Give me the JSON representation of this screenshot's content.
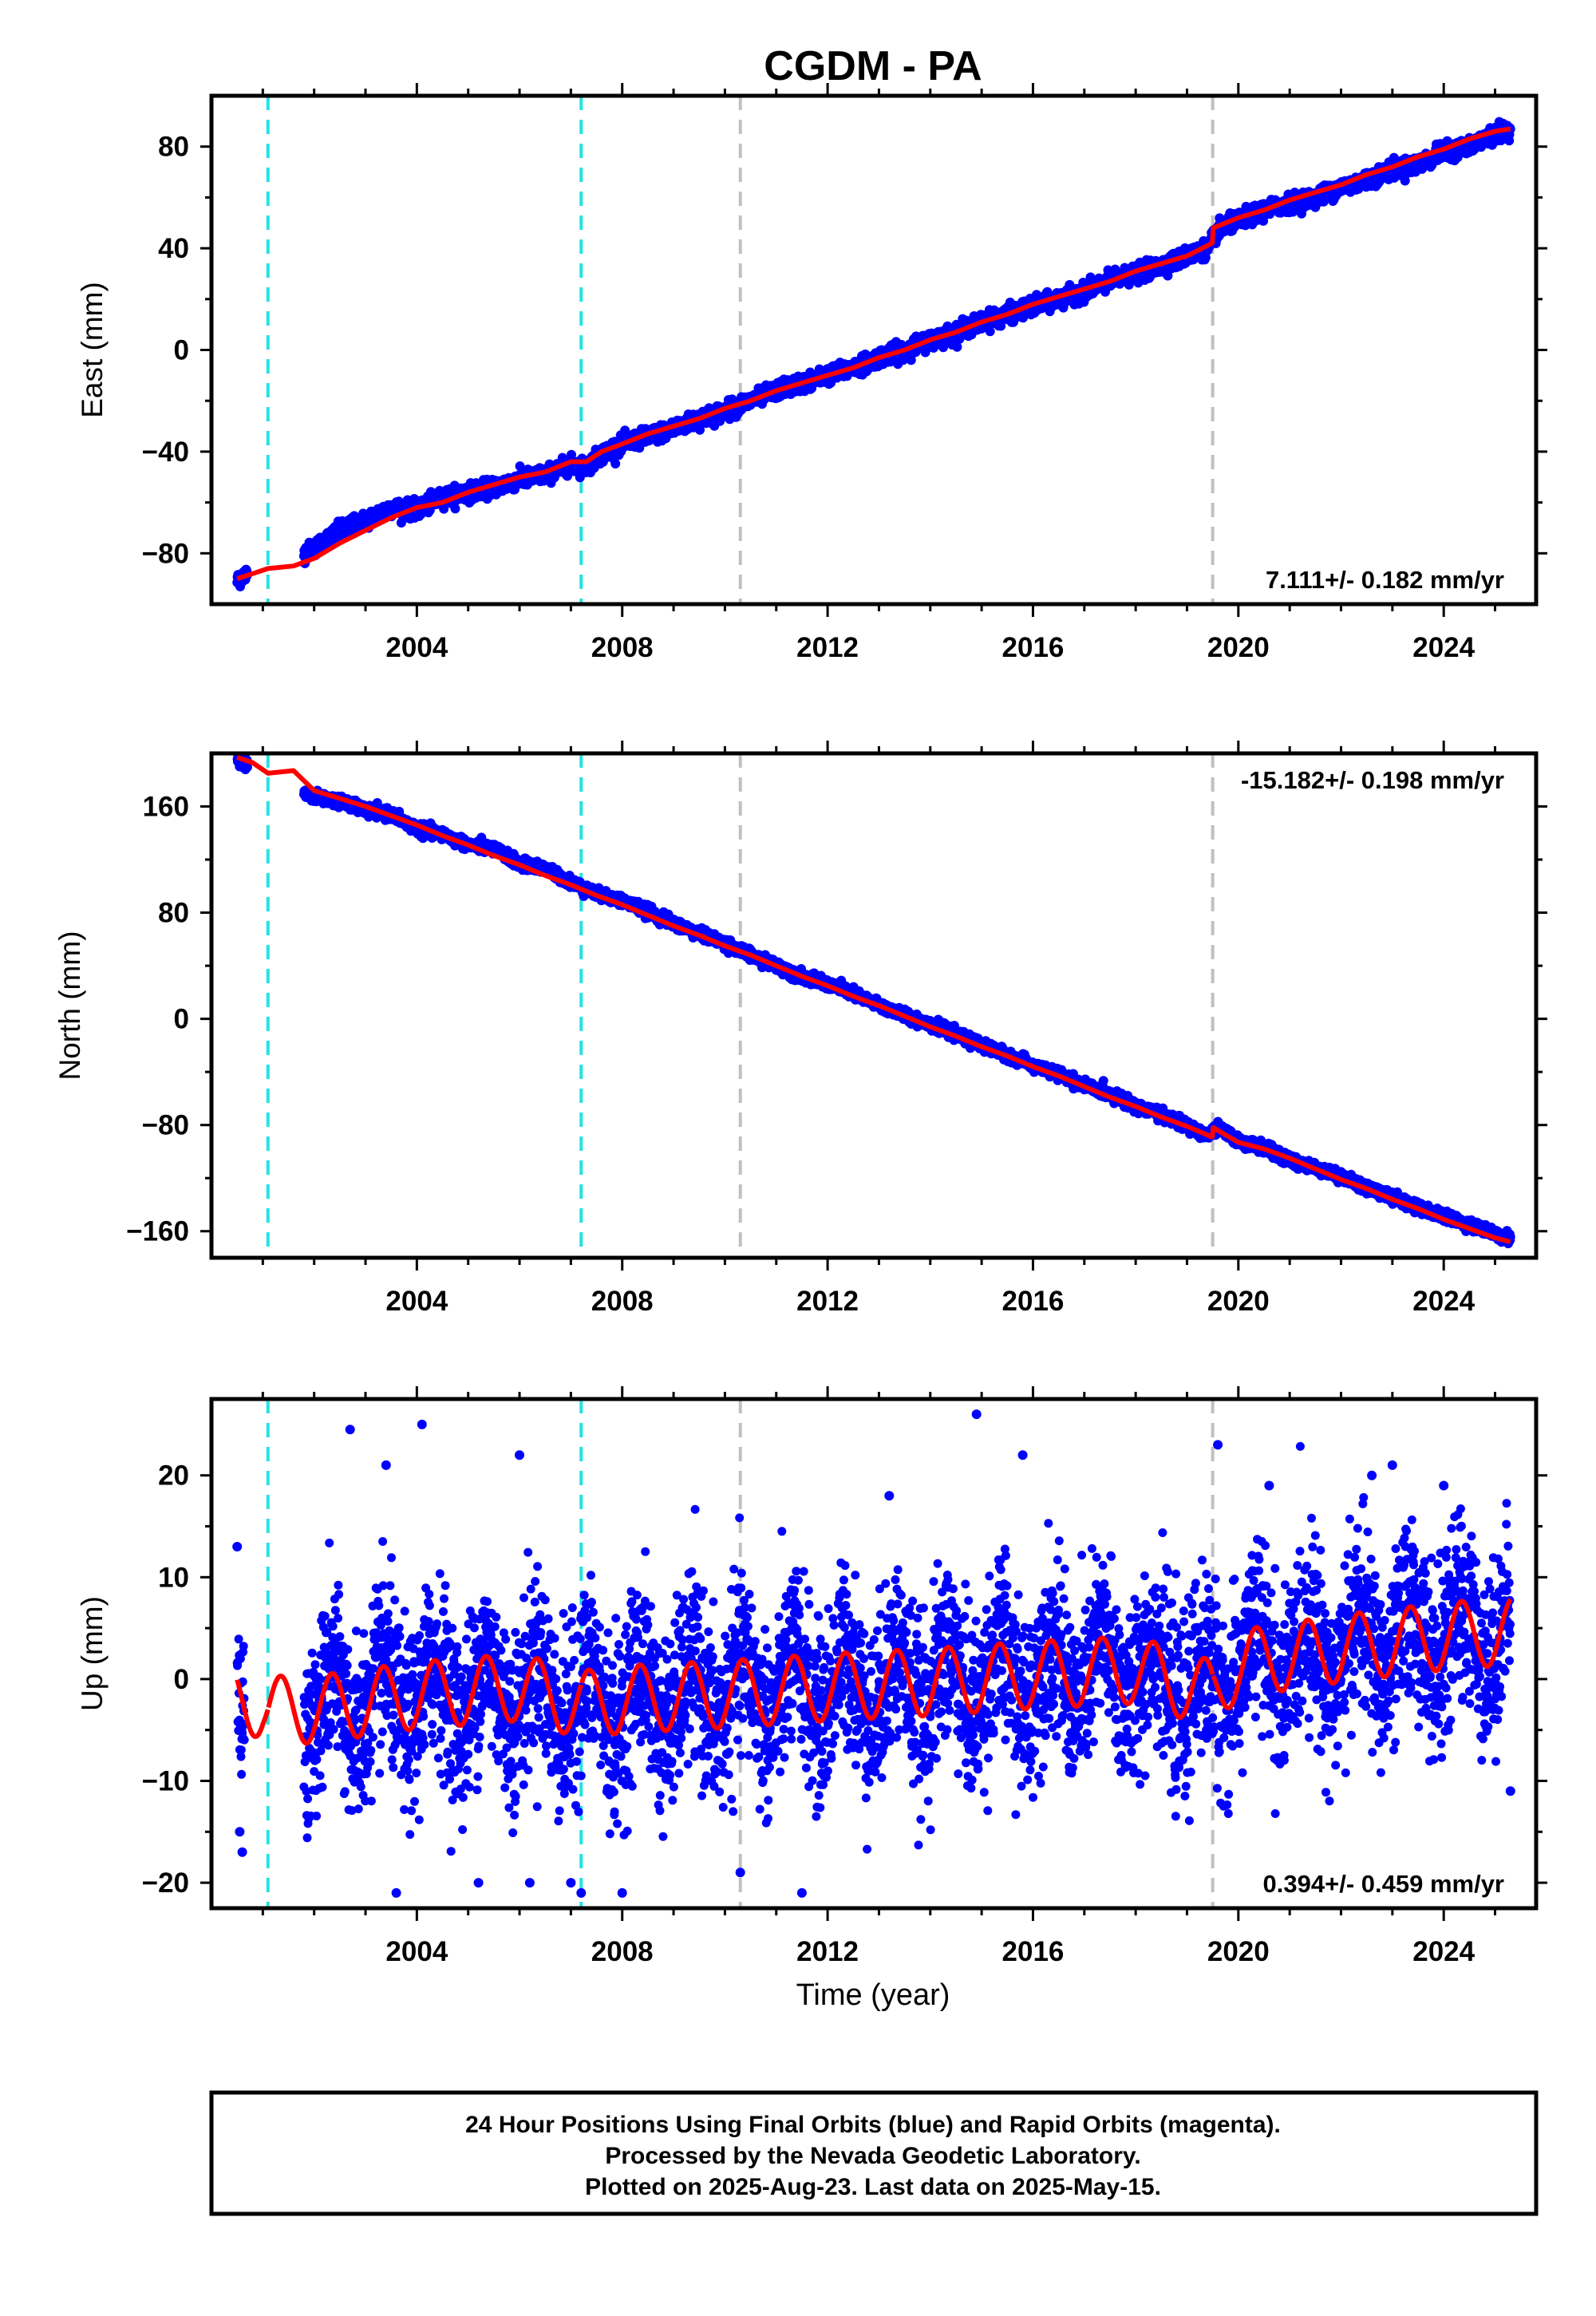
{
  "title": "CGDM - PA",
  "colors": {
    "points": "#0000ff",
    "model": "#ff0000",
    "equipment_change": "#22e3e3",
    "other_event": "#c0c0c0",
    "frame": "#000000"
  },
  "chart_data": [
    {
      "type": "scatter",
      "name": "east",
      "ylabel": "East (mm)",
      "ylim": [
        -100,
        100
      ],
      "yticks": [
        -80,
        -40,
        0,
        40,
        80
      ],
      "xlim": [
        2000.0,
        2025.8
      ],
      "xticks": [
        2004,
        2008,
        2012,
        2016,
        2020,
        2024
      ],
      "rate_label": "7.111+/- 0.182 mm/yr",
      "rate_position": "bottom-right",
      "series": [
        {
          "name": "",
          "kind": "points",
          "x": [
            2000.5,
            2000.6,
            2001.8,
            2002.0,
            2002.5,
            2003.0,
            2003.5,
            2004.0,
            2004.5,
            2005.0,
            2005.5,
            2006.0,
            2006.5,
            2007.0,
            2007.3,
            2007.6,
            2008.0,
            2008.5,
            2009.0,
            2009.5,
            2010.0,
            2010.5,
            2011.0,
            2011.5,
            2012.0,
            2012.5,
            2013.0,
            2013.5,
            2014.0,
            2014.5,
            2015.0,
            2015.5,
            2016.0,
            2016.5,
            2017.0,
            2017.5,
            2018.0,
            2018.5,
            2019.0,
            2019.4,
            2019.6,
            2020.0,
            2020.5,
            2021.0,
            2021.5,
            2022.0,
            2022.5,
            2023.0,
            2023.5,
            2024.0,
            2024.5,
            2025.0,
            2025.3
          ],
          "y": [
            -91,
            -89,
            -80,
            -78,
            -71,
            -67,
            -62,
            -63,
            -58,
            -56,
            -54,
            -51,
            -49,
            -45,
            -46,
            -41,
            -37,
            -34,
            -31,
            -27,
            -24,
            -20,
            -16,
            -13,
            -10,
            -7,
            -3,
            0,
            4,
            7,
            11,
            14,
            17,
            20,
            23,
            27,
            30,
            33,
            37,
            40,
            47,
            51,
            55,
            58,
            60,
            64,
            67,
            71,
            73,
            78,
            80,
            85,
            87
          ]
        },
        {
          "name": "",
          "kind": "model",
          "x": [
            2000.5,
            2000.8,
            2001.1,
            2001.6,
            2002.0,
            2002.5,
            2003.0,
            2003.5,
            2004.0,
            2004.5,
            2005.0,
            2005.5,
            2006.0,
            2006.5,
            2007.0,
            2007.3,
            2007.6,
            2008.0,
            2008.5,
            2009.0,
            2009.5,
            2010.0,
            2010.5,
            2011.0,
            2011.5,
            2012.0,
            2012.5,
            2013.0,
            2013.5,
            2014.0,
            2014.5,
            2015.0,
            2015.5,
            2016.0,
            2016.5,
            2017.0,
            2017.5,
            2018.0,
            2018.5,
            2019.0,
            2019.49,
            2019.51,
            2020.0,
            2020.5,
            2021.0,
            2021.5,
            2022.0,
            2022.5,
            2023.0,
            2023.5,
            2024.0,
            2024.5,
            2025.0,
            2025.3
          ],
          "y": [
            -90,
            -88,
            -86,
            -85,
            -82,
            -76,
            -71,
            -66,
            -62,
            -60,
            -56,
            -53,
            -50,
            -48,
            -44,
            -44,
            -40,
            -37,
            -33,
            -30,
            -27,
            -23,
            -20,
            -16,
            -13,
            -10,
            -7,
            -3,
            0,
            4,
            7,
            11,
            14,
            18,
            21,
            24,
            27,
            31,
            34,
            37,
            42,
            48,
            52,
            55,
            59,
            62,
            65,
            69,
            72,
            76,
            79,
            83,
            86,
            87
          ]
        }
      ],
      "events": [
        {
          "x": 2001.1,
          "kind": "equipment_change"
        },
        {
          "x": 2007.2,
          "kind": "equipment_change"
        },
        {
          "x": 2010.3,
          "kind": "other_event"
        },
        {
          "x": 2019.5,
          "kind": "other_event"
        }
      ]
    },
    {
      "type": "scatter",
      "name": "north",
      "ylabel": "North (mm)",
      "ylim": [
        -180,
        200
      ],
      "yticks": [
        -160,
        -80,
        0,
        80,
        160
      ],
      "xlim": [
        2000.0,
        2025.8
      ],
      "xticks": [
        2004,
        2008,
        2012,
        2016,
        2020,
        2024
      ],
      "rate_label": "-15.182+/- 0.198 mm/yr",
      "rate_position": "top-right",
      "series": [
        {
          "name": "",
          "kind": "points",
          "x": [
            2000.5,
            2000.6,
            2001.8,
            2002.0,
            2002.5,
            2003.0,
            2003.5,
            2004.0,
            2004.5,
            2005.0,
            2005.5,
            2006.0,
            2006.5,
            2007.0,
            2007.5,
            2008.0,
            2008.5,
            2009.0,
            2009.5,
            2010.0,
            2010.5,
            2011.0,
            2011.5,
            2012.0,
            2012.5,
            2013.0,
            2013.5,
            2014.0,
            2014.5,
            2015.0,
            2015.5,
            2016.0,
            2016.5,
            2017.0,
            2017.5,
            2018.0,
            2018.5,
            2019.0,
            2019.4,
            2019.6,
            2020.0,
            2020.5,
            2021.0,
            2021.5,
            2022.0,
            2022.5,
            2023.0,
            2023.5,
            2024.0,
            2024.5,
            2025.0,
            2025.3
          ],
          "y": [
            198,
            194,
            170,
            167,
            164,
            157,
            154,
            143,
            139,
            131,
            128,
            117,
            113,
            103,
            94,
            89,
            81,
            72,
            64,
            57,
            48,
            40,
            32,
            26,
            19,
            10,
            3,
            -4,
            -12,
            -20,
            -27,
            -35,
            -42,
            -50,
            -57,
            -65,
            -72,
            -81,
            -88,
            -82,
            -92,
            -97,
            -107,
            -112,
            -119,
            -127,
            -134,
            -142,
            -149,
            -155,
            -162,
            -165
          ]
        },
        {
          "name": "",
          "kind": "model",
          "x": [
            2000.5,
            2000.8,
            2001.1,
            2001.6,
            2002.0,
            2002.5,
            2003.0,
            2003.5,
            2004.0,
            2004.5,
            2005.0,
            2005.5,
            2006.0,
            2006.5,
            2007.0,
            2007.5,
            2008.0,
            2008.5,
            2009.0,
            2009.5,
            2010.0,
            2010.5,
            2011.0,
            2011.5,
            2012.0,
            2012.5,
            2013.0,
            2013.5,
            2014.0,
            2014.5,
            2015.0,
            2015.5,
            2016.0,
            2016.5,
            2017.0,
            2017.5,
            2018.0,
            2018.5,
            2019.0,
            2019.49,
            2019.51,
            2020.0,
            2020.5,
            2021.0,
            2021.5,
            2022.0,
            2022.5,
            2023.0,
            2023.5,
            2024.0,
            2024.5,
            2025.0,
            2025.3
          ],
          "y": [
            197,
            193,
            185,
            187,
            172,
            166,
            160,
            153,
            146,
            138,
            131,
            123,
            116,
            108,
            101,
            93,
            86,
            78,
            70,
            63,
            55,
            48,
            40,
            32,
            25,
            17,
            10,
            2,
            -6,
            -13,
            -21,
            -28,
            -36,
            -43,
            -51,
            -59,
            -66,
            -74,
            -81,
            -89,
            -82,
            -93,
            -98,
            -105,
            -113,
            -121,
            -128,
            -136,
            -143,
            -151,
            -158,
            -165,
            -168
          ]
        }
      ],
      "events": [
        {
          "x": 2001.1,
          "kind": "equipment_change"
        },
        {
          "x": 2007.2,
          "kind": "equipment_change"
        },
        {
          "x": 2010.3,
          "kind": "other_event"
        },
        {
          "x": 2019.5,
          "kind": "other_event"
        }
      ]
    },
    {
      "type": "scatter",
      "name": "up",
      "ylabel": "Up (mm)",
      "xlabel": "Time (year)",
      "ylim": [
        -22.5,
        27.5
      ],
      "yticks": [
        -20,
        -10,
        0,
        10,
        20
      ],
      "xlim": [
        2000.0,
        2025.8
      ],
      "xticks": [
        2004,
        2008,
        2012,
        2016,
        2020,
        2024
      ],
      "rate_label": "0.394+/- 0.459 mm/yr",
      "rate_position": "bottom-right",
      "series": [
        {
          "name": "",
          "kind": "points",
          "description_values": "daily heights scatter roughly +/-10 mm about the seasonal model",
          "x": [
            2000.5,
            2000.55,
            2000.6,
            2002.7,
            2003.4,
            2003.6,
            2004.1,
            2005.2,
            2006.0,
            2006.2,
            2007.0,
            2007.2,
            2008.0,
            2010.3,
            2011.5,
            2013.2,
            2014.9,
            2015.8,
            2019.6,
            2020.6,
            2022.6,
            2023.0,
            2024.0,
            2025.3
          ],
          "y": [
            13,
            -15,
            -17,
            24.5,
            21,
            -21,
            25,
            -20,
            22,
            -20,
            -20,
            -21,
            -21,
            -19,
            -21,
            18,
            26,
            22,
            23,
            19,
            20,
            21,
            19,
            -11
          ]
        },
        {
          "name": "",
          "kind": "model",
          "amplitude": 3.3,
          "phase_year": 0.35,
          "breaks": [
            2001.1,
            2007.2,
            2019.5
          ],
          "x": [
            2000.5,
            2001.0,
            2001.1,
            2001.6,
            2002.0,
            2004.0,
            2006.0,
            2007.2,
            2008.0,
            2010.0,
            2012.0,
            2014.0,
            2016.0,
            2018.0,
            2019.5,
            2020.0,
            2022.0,
            2024.0,
            2025.3
          ],
          "y": [
            -2.0,
            -2.5,
            -3.0,
            -3.0,
            -3.0,
            -1.6,
            -0.8,
            -2.5,
            -2.0,
            -1.5,
            -0.8,
            -0.3,
            0.4,
            0.9,
            -1.5,
            1.5,
            3.0,
            4.2,
            4.7
          ]
        }
      ],
      "events": [
        {
          "x": 2001.1,
          "kind": "equipment_change"
        },
        {
          "x": 2007.2,
          "kind": "equipment_change"
        },
        {
          "x": 2010.3,
          "kind": "other_event"
        },
        {
          "x": 2019.5,
          "kind": "other_event"
        }
      ]
    }
  ],
  "footer": {
    "line1": "24 Hour Positions Using Final Orbits (blue) and Rapid Orbits (magenta).",
    "line2": "Processed by the Nevada Geodetic Laboratory.",
    "line3": "Plotted on 2025-Aug-23. Last data on 2025-May-15."
  }
}
